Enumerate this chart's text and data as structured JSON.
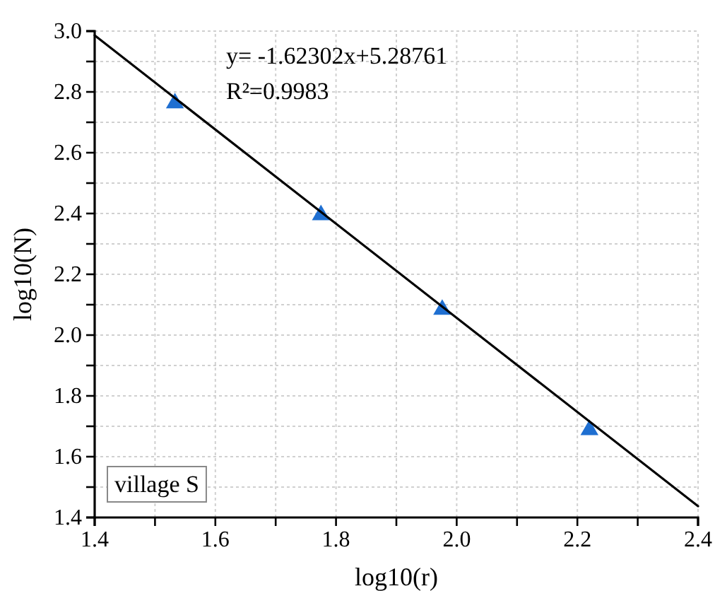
{
  "chart_data": {
    "type": "scatter",
    "xlabel": "log10(r)",
    "ylabel": "log10(N)",
    "xlim": [
      1.4,
      2.4
    ],
    "ylim": [
      1.4,
      3.0
    ],
    "xticks": [
      1.4,
      {
        "value": 1.5,
        "label": null
      },
      1.6,
      {
        "value": 1.7,
        "label": null
      },
      1.8,
      {
        "value": 1.9,
        "label": null
      },
      {
        "value": 2.0,
        "label": "2.0"
      },
      {
        "value": 2.1,
        "label": null
      },
      2.2,
      {
        "value": 2.3,
        "label": null
      },
      2.4
    ],
    "yticks": [
      1.4,
      {
        "value": 1.5,
        "label": null
      },
      1.6,
      {
        "value": 1.7,
        "label": null
      },
      1.8,
      {
        "value": 1.9,
        "label": null
      },
      {
        "value": 2.0,
        "label": "2.0"
      },
      {
        "value": 2.1,
        "label": null
      },
      2.2,
      {
        "value": 2.3,
        "label": null
      },
      2.4,
      {
        "value": 2.5,
        "label": null
      },
      2.6,
      {
        "value": 2.7,
        "label": null
      },
      2.8,
      {
        "value": 2.9,
        "label": null
      },
      {
        "value": 3.0,
        "label": "3.0"
      }
    ],
    "grid": true,
    "series": [
      {
        "color": "#1f6fd1",
        "marker": "triangle",
        "x": [
          1.533,
          1.775,
          1.976,
          2.22
        ],
        "values": [
          2.763,
          2.395,
          2.084,
          1.688
        ]
      },
      {
        "type": "line",
        "color": "#000000",
        "marker": "none",
        "x": [
          1.4,
          2.4
        ],
        "values": [
          2.986,
          1.437
        ]
      }
    ],
    "annotations": [
      "y= -1.62302x+5.28761",
      "R²=0.9983",
      "village S"
    ]
  }
}
